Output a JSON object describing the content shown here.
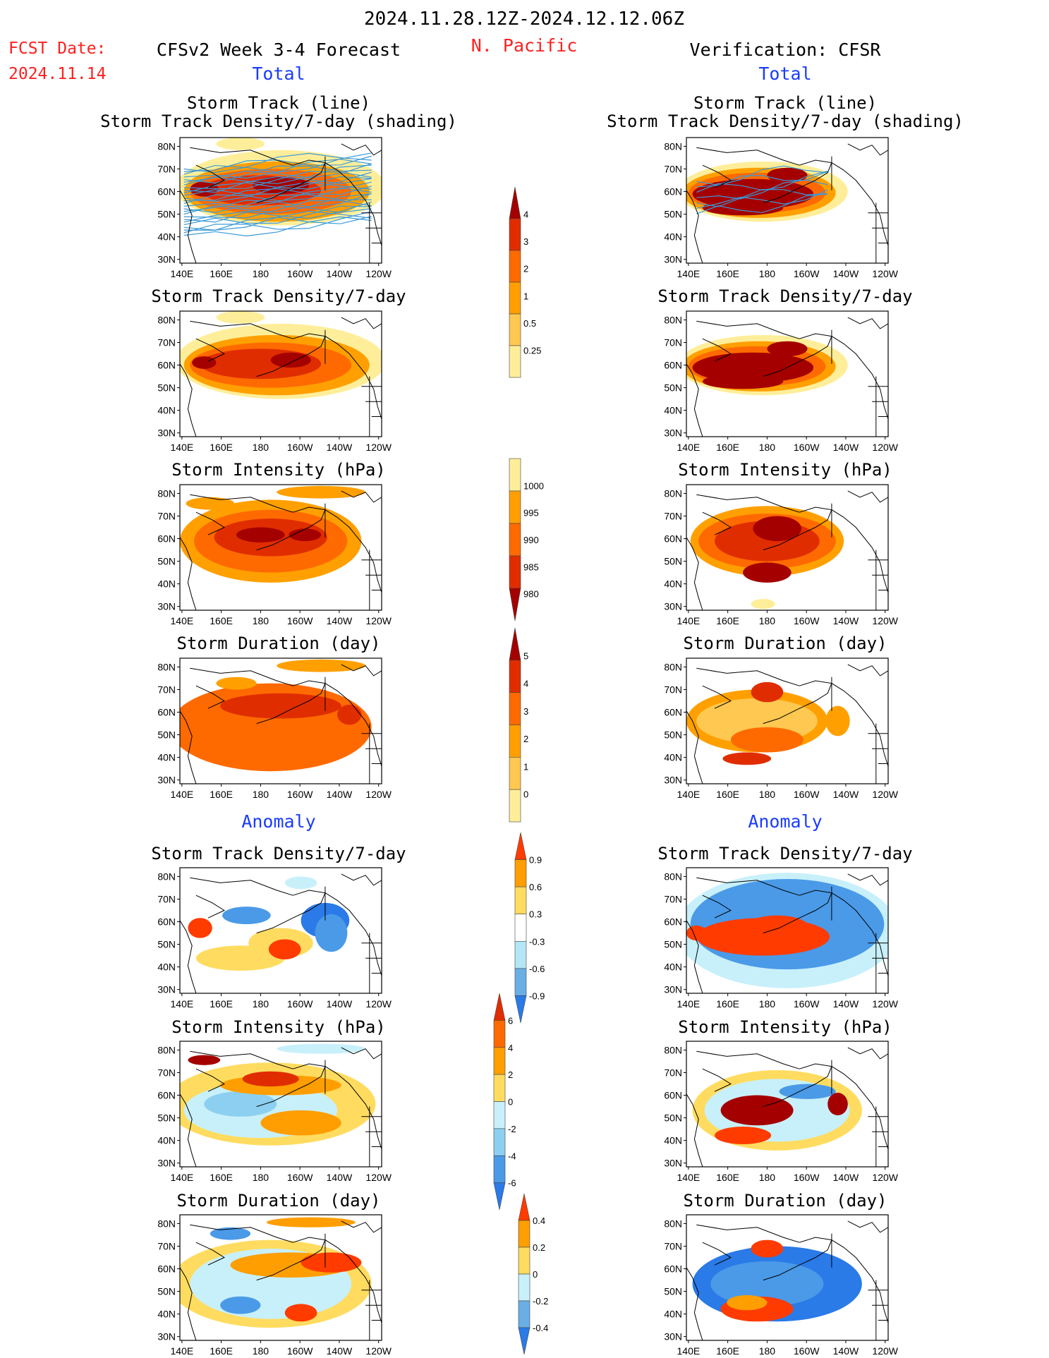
{
  "header": {
    "period": "2024.11.28.12Z-2024.12.12.06Z",
    "fcst_label": "FCST Date:",
    "fcst_date": "2024.11.14",
    "region": "N. Pacific",
    "left_model": "CFSv2 Week 3-4 Forecast",
    "right_model": "Verification: CFSR",
    "total_label": "Total",
    "anomaly_label": "Anomaly"
  },
  "panels": {
    "track_line": "Storm Track (line)",
    "track_shading": "Storm Track Density/7-day (shading)",
    "density": "Storm Track Density/7-day",
    "intensity": "Storm Intensity (hPa)",
    "duration": "Storm Duration (day)"
  },
  "axes": {
    "lat_ticks": [
      "80N",
      "70N",
      "60N",
      "50N",
      "40N",
      "30N"
    ],
    "lon_ticks": [
      "140E",
      "160E",
      "180",
      "160W",
      "140W",
      "120W"
    ]
  },
  "colorbars": [
    {
      "id": "density-total",
      "labels": [
        "4",
        "3",
        "2",
        "1",
        "0.5",
        "0.25"
      ],
      "colors": [
        "#a50000",
        "#e02d00",
        "#ff6a00",
        "#ffa000",
        "#ffc850",
        "#ffee99"
      ]
    },
    {
      "id": "intensity-total",
      "labels": [
        "1000",
        "995",
        "990",
        "985",
        "980"
      ],
      "colors": [
        "#ffee99",
        "#ffa000",
        "#ff6a00",
        "#e02d00",
        "#a50000"
      ]
    },
    {
      "id": "duration-total",
      "labels": [
        "5",
        "4",
        "3",
        "2",
        "1",
        "0"
      ],
      "colors": [
        "#a50000",
        "#e02d00",
        "#ff6a00",
        "#ffa000",
        "#ffc850",
        "#ffee99"
      ]
    },
    {
      "id": "density-anom",
      "labels": [
        "0.9",
        "0.6",
        "0.3",
        "-0.3",
        "-0.6",
        "-0.9"
      ],
      "colors": [
        "#ff3b00",
        "#ff9e00",
        "#ffdc60",
        "#ffffff",
        "#b4e6f5",
        "#6aaee6",
        "#2a7ae8"
      ]
    },
    {
      "id": "intensity-anom",
      "labels": [
        "6",
        "4",
        "2",
        "0",
        "-2",
        "-4",
        "-6"
      ],
      "colors": [
        "#e02d00",
        "#ff6a00",
        "#ffa000",
        "#ffdc60",
        "#c8f0fa",
        "#8ccff0",
        "#4a9ae8",
        "#2a7ae8"
      ]
    },
    {
      "id": "duration-anom",
      "labels": [
        "0.4",
        "0.2",
        "0",
        "-0.2",
        "-0.4"
      ],
      "colors": [
        "#ff3b00",
        "#ff9e00",
        "#ffdc60",
        "#c8f0fa",
        "#6aaee6",
        "#2a7ae8"
      ]
    }
  ],
  "colors": {
    "title_red": "#ff2020",
    "label_blue": "#1a3cff",
    "track_line": "#3a9ad9"
  }
}
